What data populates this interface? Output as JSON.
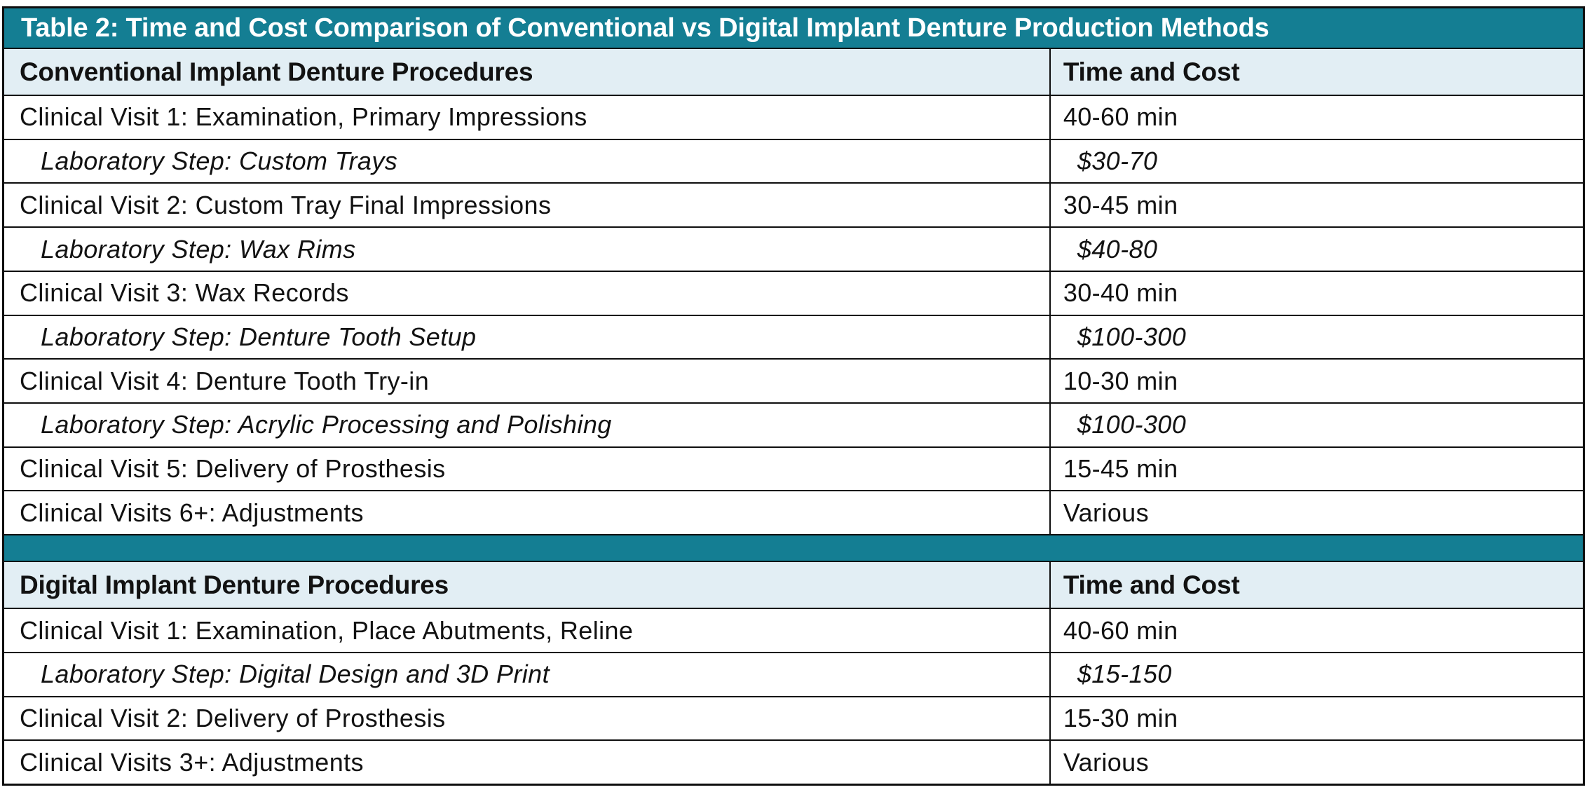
{
  "table": {
    "title": "Table 2: Time and Cost Comparison of Conventional vs Digital Implant Denture Production Methods",
    "colors": {
      "teal_accent": "#147E93",
      "header_row_bg": "#E2EEF4",
      "border": "#0E0E0E",
      "title_text": "#FFFFFF",
      "body_text": "#121212"
    },
    "sections": [
      {
        "header": {
          "procedures": "Conventional Implant Denture Procedures",
          "time_cost": "Time and Cost"
        },
        "rows": [
          {
            "style": "clinical",
            "label": "Clinical Visit 1: Examination, Primary Impressions",
            "value": "40-60 min"
          },
          {
            "style": "lab",
            "label": "Laboratory Step: Custom Trays",
            "value": "$30-70"
          },
          {
            "style": "clinical",
            "label": "Clinical Visit 2: Custom Tray Final Impressions",
            "value": "30-45 min"
          },
          {
            "style": "lab",
            "label": "Laboratory Step: Wax Rims",
            "value": "$40-80"
          },
          {
            "style": "clinical",
            "label": "Clinical Visit 3: Wax Records",
            "value": "30-40 min"
          },
          {
            "style": "lab",
            "label": "Laboratory Step: Denture Tooth Setup",
            "value": "$100-300"
          },
          {
            "style": "clinical",
            "label": "Clinical Visit 4: Denture Tooth Try-in",
            "value": "10-30 min"
          },
          {
            "style": "lab",
            "label": "Laboratory Step: Acrylic Processing and Polishing",
            "value": "$100-300"
          },
          {
            "style": "clinical",
            "label": "Clinical Visit 5: Delivery of Prosthesis",
            "value": "15-45 min"
          },
          {
            "style": "clinical",
            "label": "Clinical Visits 6+: Adjustments",
            "value": "Various"
          }
        ]
      },
      {
        "header": {
          "procedures": "Digital Implant Denture Procedures",
          "time_cost": "Time and Cost"
        },
        "rows": [
          {
            "style": "clinical",
            "label": "Clinical Visit 1: Examination, Place Abutments, Reline",
            "value": "40-60 min"
          },
          {
            "style": "lab",
            "label": "Laboratory Step: Digital Design and 3D Print",
            "value": "$15-150"
          },
          {
            "style": "clinical",
            "label": "Clinical Visit 2: Delivery of Prosthesis",
            "value": "15-30 min"
          },
          {
            "style": "clinical",
            "label": "Clinical Visits 3+: Adjustments",
            "value": "Various"
          }
        ]
      }
    ]
  }
}
